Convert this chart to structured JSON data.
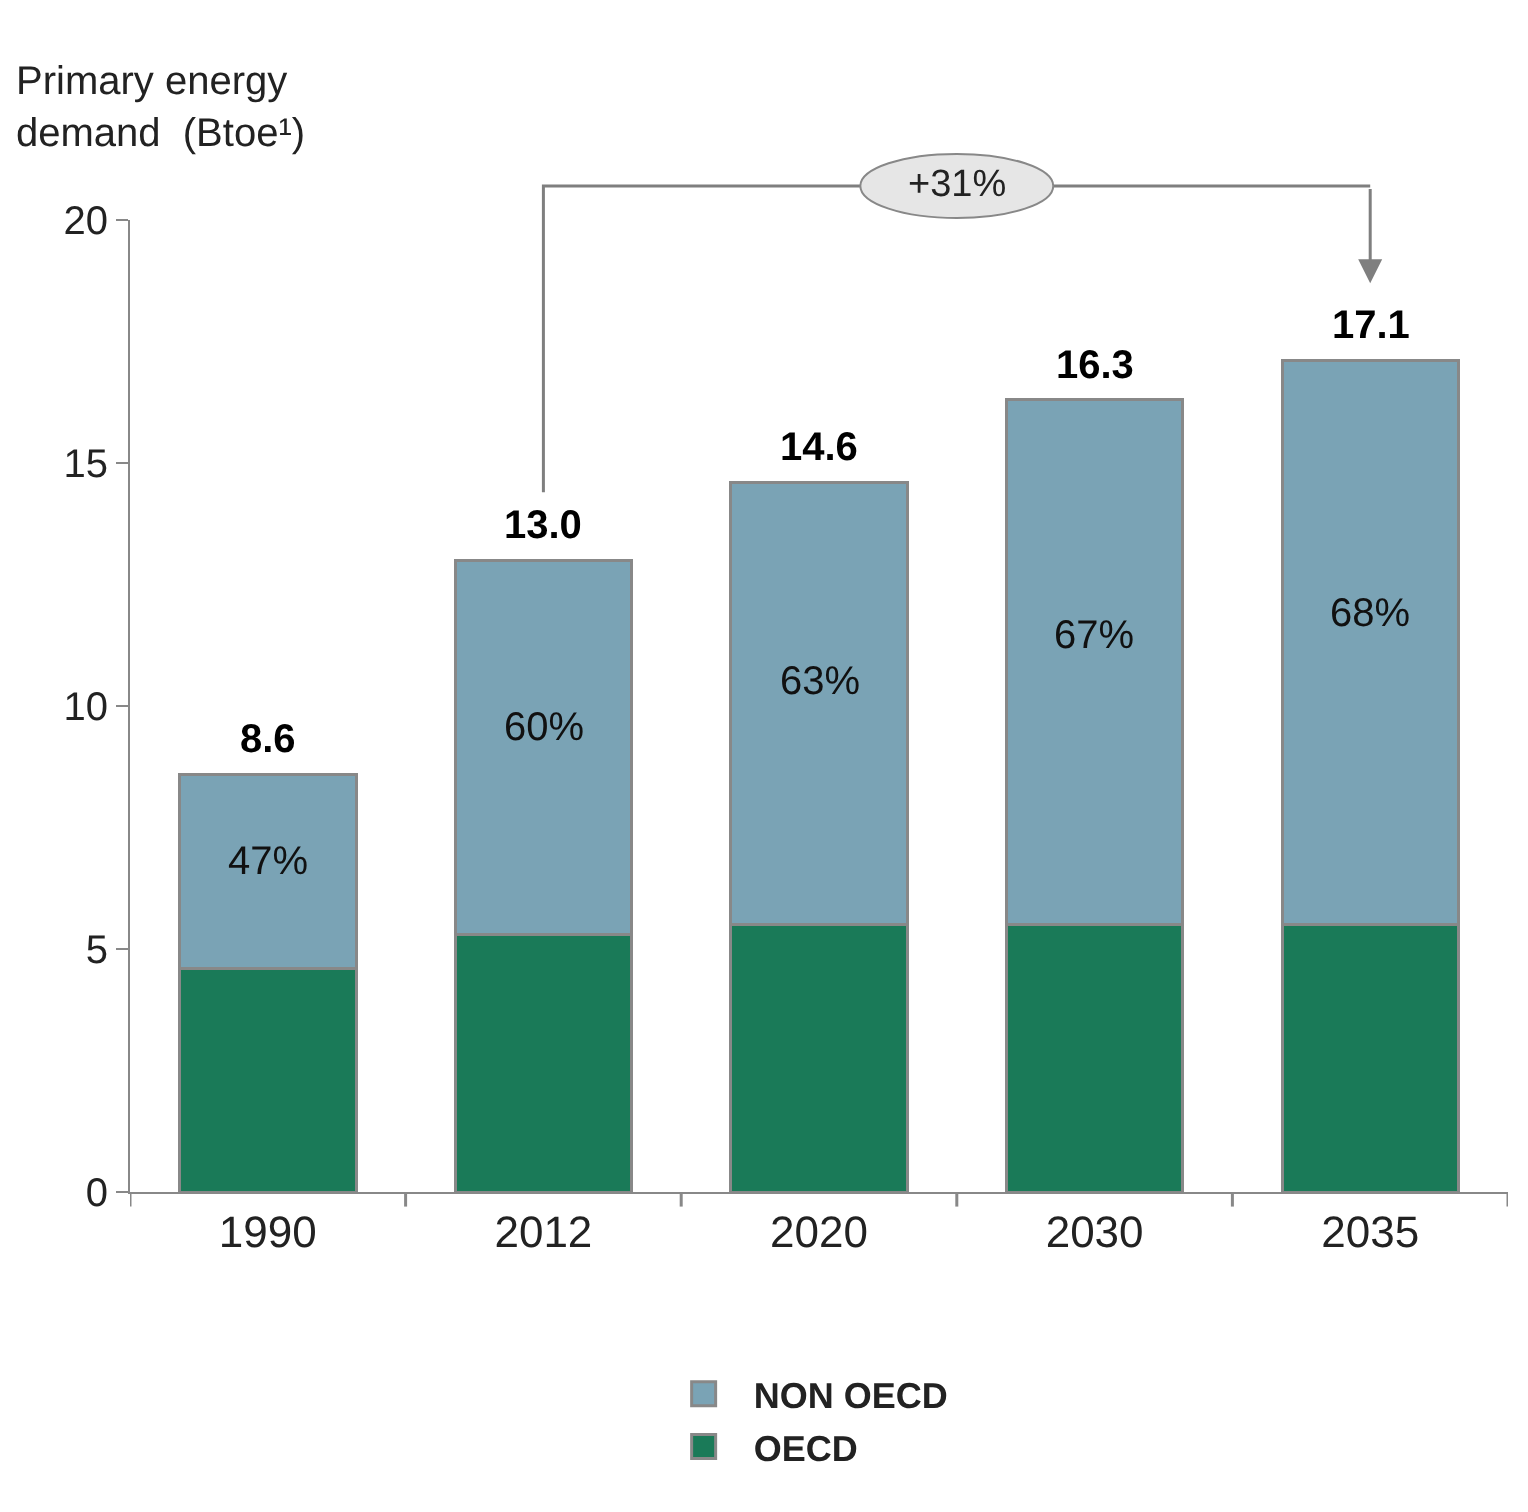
{
  "chart_data": {
    "type": "bar",
    "stacked": true,
    "ylabel": "Primary energy\ndemand  (Btoe¹)",
    "categories": [
      "1990",
      "2012",
      "2020",
      "2030",
      "2035"
    ],
    "series": [
      {
        "name": "OECD",
        "color": "#1a7a58",
        "values": [
          4.6,
          5.3,
          5.5,
          5.5,
          5.5
        ]
      },
      {
        "name": "NON OECD",
        "color": "#7aa3b5",
        "values": [
          4.0,
          7.7,
          9.1,
          10.8,
          11.6
        ]
      }
    ],
    "totals": [
      "8.6",
      "13.0",
      "14.6",
      "16.3",
      "17.1"
    ],
    "annotations": [
      "+31%",
      "47%",
      "60%",
      "63%",
      "67%",
      "68%"
    ],
    "ylim": [
      0,
      20
    ],
    "yticks": [
      0,
      5,
      10,
      15,
      20
    ],
    "legend": "bottom"
  }
}
